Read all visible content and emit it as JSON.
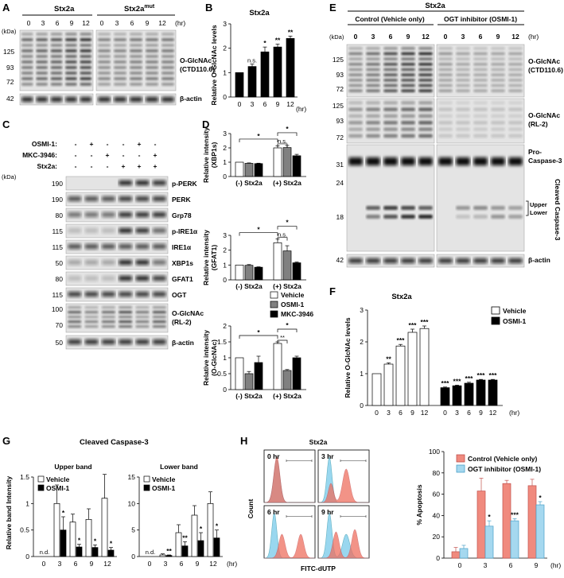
{
  "panel_letters": [
    "A",
    "B",
    "C",
    "D",
    "E",
    "F",
    "G",
    "H"
  ],
  "colors": {
    "control_bar": "#f08a7e",
    "ogt_bar": "#a5d8ef",
    "flow_red": "#ee7060",
    "flow_blue": "#8fd3ee",
    "vehicle": "#ffffff",
    "osmi": "#808080",
    "mkc": "#000000"
  },
  "panelA": {
    "groups": [
      "Stx2a",
      "Stx2a"
    ],
    "group_sup": [
      "",
      "mut"
    ],
    "times": [
      "0",
      "3",
      "6",
      "9",
      "12"
    ],
    "unit": "(hr)",
    "kda": "(kDa)",
    "markers_top": [
      "125",
      "93",
      "72",
      "42"
    ],
    "labels": [
      "O-GlcNAc",
      "(CTD110.6)",
      "β-actin"
    ]
  },
  "panelB": {
    "title": "Stx2a",
    "ylabel": "Relative O-GlcNAc levels",
    "unit": "(hr)",
    "sig": [
      "",
      "n.s.",
      "*",
      "**",
      "**"
    ]
  },
  "panelC": {
    "row_labels": [
      "OSMI-1:",
      "MKC-3946:",
      "Stx2a:"
    ],
    "rows": [
      [
        "-",
        "+",
        "-",
        "-",
        "+",
        "-"
      ],
      [
        "-",
        "-",
        "+",
        "-",
        "-",
        "+"
      ],
      [
        "-",
        "-",
        "-",
        "+",
        "+",
        "+"
      ]
    ],
    "kda": "(kDa)",
    "blots": [
      {
        "mw": "190",
        "label": "p-PERK"
      },
      {
        "mw": "190",
        "label": "PERK"
      },
      {
        "mw": "80",
        "label": "Grp78"
      },
      {
        "mw": "115",
        "label": "p-IRE1α"
      },
      {
        "mw": "115",
        "label": "IRE1α"
      },
      {
        "mw": "50",
        "label": "XBP1s"
      },
      {
        "mw": "80",
        "label": "GFAT1"
      },
      {
        "mw": "115",
        "label": "OGT"
      },
      {
        "mw": "100",
        "label": "O-GlcNAc"
      },
      {
        "mw": "70",
        "label": "(RL-2)"
      },
      {
        "mw": "50",
        "label": "β-actin"
      }
    ]
  },
  "panelD": {
    "ylabels": [
      [
        "Relative intensity",
        "(XBP1s)"
      ],
      [
        "Relative intensity",
        "(GFAT1)"
      ],
      [
        "Relative intensity",
        "(O-GlcNAc)"
      ]
    ],
    "groups": [
      "(-) Stx2a",
      "(+) Stx2a"
    ],
    "sig": [
      "*",
      "n.s.",
      "*"
    ],
    "sig2": [
      "**"
    ]
  },
  "panelE": {
    "title": "Stx2a",
    "groups": [
      "Control (Vehicle only)",
      "OGT inhibitor (OSMI-1)"
    ],
    "times": [
      "0",
      "3",
      "6",
      "9",
      "12"
    ],
    "unit": "(hr)",
    "kda": "(kDa)",
    "mw": [
      "125",
      "93",
      "72",
      "125",
      "93",
      "72",
      "31",
      "24",
      "18",
      "42"
    ],
    "labels": [
      "O-GlcNAc",
      "(CTD110.6)",
      "O-GlcNAc",
      "(RL-2)",
      "Pro-",
      "Caspase-3",
      "Upper",
      "Lower",
      "Cleaved Caspase-3",
      "β-actin"
    ]
  },
  "panelG": {
    "title": "Cleaved Caspase-3",
    "subtitles": [
      "Upper band",
      "Lower band"
    ],
    "ylabel": "Relative band Intensity",
    "unit": "(hr)",
    "nd": "n.d.",
    "sig_upper": [
      "*",
      "*",
      "*",
      "*"
    ],
    "sig_lower": [
      "**",
      "**",
      "*",
      "*"
    ]
  },
  "panelH": {
    "title": "Stx2a",
    "flow_labels": [
      "0 hr",
      "3 hr",
      "6 hr",
      "9 hr"
    ],
    "xlabel": "FITC-dUTP",
    "ylabel": "Count"
  },
  "chart_data": [
    {
      "type": "bar",
      "panel": "B",
      "title": "Stx2a",
      "categories": [
        "0",
        "3",
        "6",
        "9",
        "12"
      ],
      "values": [
        1.0,
        1.25,
        1.85,
        2.05,
        2.4
      ],
      "errors": [
        0,
        0.1,
        0.2,
        0.12,
        0.1
      ],
      "ylabel": "Relative O-GlcNAc levels",
      "xlabel": "(hr)",
      "ylim": [
        0,
        3
      ],
      "yticks": [
        "0",
        "1",
        "2",
        "3"
      ]
    },
    {
      "type": "bar",
      "panel": "D1",
      "categories": [
        "(-) Stx2a",
        "(+) Stx2a"
      ],
      "series": [
        {
          "name": "Vehicle",
          "values": [
            1.0,
            2.0
          ],
          "errors": [
            0,
            0.15
          ]
        },
        {
          "name": "OSMI-1",
          "values": [
            0.92,
            2.02
          ],
          "errors": [
            0.03,
            0.15
          ]
        },
        {
          "name": "MKC-3946",
          "values": [
            0.9,
            1.45
          ],
          "errors": [
            0.03,
            0.1
          ]
        }
      ],
      "ylim": [
        0,
        3
      ],
      "yticks": [
        "0",
        "1",
        "2",
        "3"
      ]
    },
    {
      "type": "bar",
      "panel": "D2",
      "categories": [
        "(-) Stx2a",
        "(+) Stx2a"
      ],
      "series": [
        {
          "name": "Vehicle",
          "values": [
            1.0,
            2.5
          ],
          "errors": [
            0,
            0.25
          ]
        },
        {
          "name": "OSMI-1",
          "values": [
            0.98,
            1.95
          ],
          "errors": [
            0.05,
            0.35
          ]
        },
        {
          "name": "MKC-3946",
          "values": [
            0.85,
            1.15
          ],
          "errors": [
            0.03,
            0.05
          ]
        }
      ],
      "ylim": [
        0,
        3
      ],
      "yticks": [
        "0",
        "1",
        "2",
        "3"
      ]
    },
    {
      "type": "bar",
      "panel": "D3",
      "categories": [
        "(-) Stx2a",
        "(+) Stx2a"
      ],
      "series": [
        {
          "name": "Vehicle",
          "values": [
            1.0,
            1.45
          ],
          "errors": [
            0,
            0.05
          ]
        },
        {
          "name": "OSMI-1",
          "values": [
            0.5,
            0.6
          ],
          "errors": [
            0.07,
            0.03
          ]
        },
        {
          "name": "MKC-3946",
          "values": [
            0.85,
            1.0
          ],
          "errors": [
            0.2,
            0.05
          ]
        }
      ],
      "ylim": [
        0,
        2
      ],
      "yticks": [
        "0",
        "0.5",
        "1",
        "1.5",
        "2"
      ]
    },
    {
      "type": "bar",
      "panel": "F",
      "title": "Stx2a",
      "categories": [
        "0",
        "3",
        "6",
        "9",
        "12"
      ],
      "series": [
        {
          "name": "Vehicle",
          "values": [
            1.0,
            1.3,
            1.87,
            2.3,
            2.42
          ],
          "errors": [
            0,
            0.04,
            0.05,
            0.1,
            0.08
          ]
        },
        {
          "name": "OSMI-1",
          "values": [
            0.56,
            0.62,
            0.7,
            0.8,
            0.8
          ],
          "errors": [
            0.02,
            0.02,
            0.03,
            0.02,
            0.02
          ]
        }
      ],
      "sig_vehicle": [
        "",
        "**",
        "***",
        "***",
        "***"
      ],
      "sig_osmi": [
        "***",
        "***",
        "***",
        "***",
        "***"
      ],
      "ylabel": "Relative O-GlcNAc levels",
      "xlabel": "(hr)",
      "ylim": [
        0,
        3
      ],
      "yticks": [
        "0",
        "1",
        "2",
        "3"
      ]
    },
    {
      "type": "bar",
      "panel": "G-upper",
      "title": "Upper band",
      "categories": [
        "0",
        "3",
        "6",
        "9",
        "12"
      ],
      "series": [
        {
          "name": "Vehicle",
          "values": [
            0,
            1.0,
            0.65,
            0.7,
            1.1
          ],
          "errors": [
            0,
            0.35,
            0.15,
            0.2,
            0.45
          ]
        },
        {
          "name": "OSMI-1",
          "values": [
            0,
            0.5,
            0.18,
            0.17,
            0.12
          ],
          "errors": [
            0,
            0.25,
            0.05,
            0.05,
            0.05
          ]
        }
      ],
      "ylim": [
        0,
        1.5
      ],
      "yticks": [
        "0",
        "0.5",
        "1",
        "1.5"
      ]
    },
    {
      "type": "bar",
      "panel": "G-lower",
      "title": "Lower band",
      "categories": [
        "0",
        "3",
        "6",
        "9",
        "12"
      ],
      "series": [
        {
          "name": "Vehicle",
          "values": [
            0,
            0.3,
            4.5,
            7.8,
            10.0
          ],
          "errors": [
            0,
            0.2,
            1.5,
            1.8,
            2.2
          ]
        },
        {
          "name": "OSMI-1",
          "values": [
            0,
            0.2,
            2.0,
            3.0,
            3.5
          ],
          "errors": [
            0,
            0.1,
            0.8,
            1.5,
            1.5
          ]
        }
      ],
      "ylim": [
        0,
        15
      ],
      "yticks": [
        "0",
        "5",
        "10",
        "15"
      ]
    },
    {
      "type": "bar",
      "panel": "H-bar",
      "categories": [
        "0",
        "3",
        "6",
        "9"
      ],
      "series": [
        {
          "name": "Control (Vehicle only)",
          "values": [
            6,
            63,
            70,
            68
          ],
          "errors": [
            4,
            12,
            3,
            6
          ]
        },
        {
          "name": "OGT inhibitor (OSMI-1)",
          "values": [
            9,
            30,
            35,
            50
          ],
          "errors": [
            3,
            5,
            2,
            3
          ]
        }
      ],
      "sig": [
        "",
        "*",
        "***",
        "*"
      ],
      "ylabel": "% Apoptosis",
      "xlabel": "(hr)",
      "ylim": [
        0,
        100
      ],
      "yticks": [
        "0",
        "20",
        "40",
        "60",
        "80",
        "100"
      ]
    }
  ]
}
